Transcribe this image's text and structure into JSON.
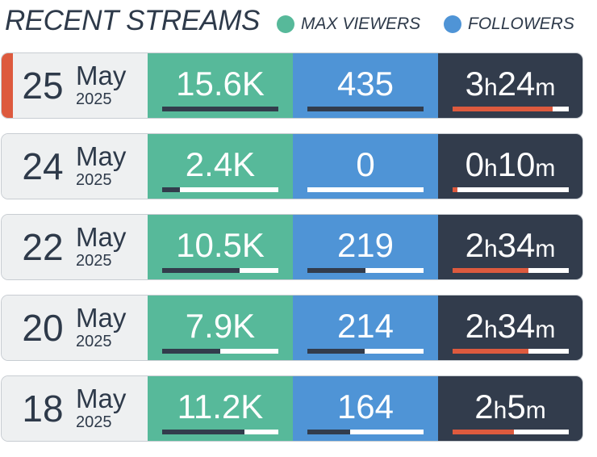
{
  "header": {
    "title": "RECENT STREAMS",
    "legend": [
      {
        "label": "MAX VIEWERS",
        "color": "#57b99a"
      },
      {
        "label": "FOLLOWERS",
        "color": "#4f94d6"
      }
    ]
  },
  "colors": {
    "viewers": "#57b99a",
    "followers": "#4f94d6",
    "duration": "#323c4c",
    "accent": "#dd5a3e",
    "text": "#2e3a4a"
  },
  "streams": [
    {
      "live": true,
      "day": "25",
      "month": "May",
      "year": "2025",
      "viewers": "15.6K",
      "viewers_fraction": 1.0,
      "followers": "435",
      "followers_fraction": 1.0,
      "hours": "3",
      "minutes": "24",
      "duration_fraction": 0.86
    },
    {
      "live": false,
      "day": "24",
      "month": "May",
      "year": "2025",
      "viewers": "2.4K",
      "viewers_fraction": 0.15,
      "followers": "0",
      "followers_fraction": 0.0,
      "hours": "0",
      "minutes": "10",
      "duration_fraction": 0.04
    },
    {
      "live": false,
      "day": "22",
      "month": "May",
      "year": "2025",
      "viewers": "10.5K",
      "viewers_fraction": 0.67,
      "followers": "219",
      "followers_fraction": 0.5,
      "hours": "2",
      "minutes": "34",
      "duration_fraction": 0.65
    },
    {
      "live": false,
      "day": "20",
      "month": "May",
      "year": "2025",
      "viewers": "7.9K",
      "viewers_fraction": 0.5,
      "followers": "214",
      "followers_fraction": 0.49,
      "hours": "2",
      "minutes": "34",
      "duration_fraction": 0.65
    },
    {
      "live": false,
      "day": "18",
      "month": "May",
      "year": "2025",
      "viewers": "11.2K",
      "viewers_fraction": 0.71,
      "followers": "164",
      "followers_fraction": 0.37,
      "hours": "2",
      "minutes": "5",
      "duration_fraction": 0.53
    }
  ]
}
